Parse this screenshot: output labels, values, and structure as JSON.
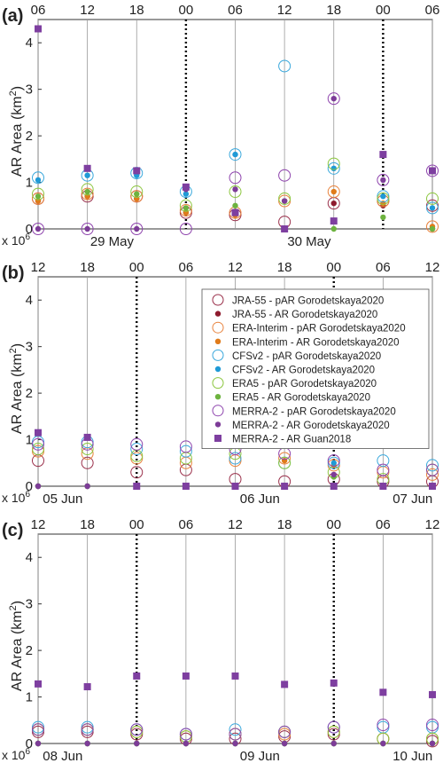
{
  "legend": [
    {
      "label": "JRA-55 - pAR Gorodetskaya2020",
      "marker": "open",
      "color": "#9a2f4a"
    },
    {
      "label": "JRA-55 - AR Gorodetskaya2020",
      "marker": "dot",
      "color": "#8e1b2e"
    },
    {
      "label": "ERA-Interim - pAR Gorodetskaya2020",
      "marker": "open",
      "color": "#e8823c"
    },
    {
      "label": "ERA-Interim - AR Gorodetskaya2020",
      "marker": "dot",
      "color": "#e07b1a"
    },
    {
      "label": "CFSv2 - pAR Gorodetskaya2020",
      "marker": "open",
      "color": "#3aa8dc"
    },
    {
      "label": "CFSv2 - AR Gorodetskaya2020",
      "marker": "dot",
      "color": "#1f9ad6"
    },
    {
      "label": "ERA5 - pAR Gorodetskaya2020",
      "marker": "open",
      "color": "#8cc63f"
    },
    {
      "label": "ERA5 - AR Gorodetskaya2020",
      "marker": "dot",
      "color": "#6db33f"
    },
    {
      "label": "MERRA-2 - pAR Gorodetskaya2020",
      "marker": "open",
      "color": "#8e44ad"
    },
    {
      "label": "MERRA-2 - AR Gorodetskaya2020",
      "marker": "dot",
      "color": "#7d3c98"
    },
    {
      "label": "MERRA-2 - AR Guan2018",
      "marker": "square",
      "color": "#7e3fa0"
    }
  ],
  "chart_data": [
    {
      "type": "scatter",
      "panel_label": "(a)",
      "ylabel": "AR Area (km",
      "ylabel_sup": "2",
      "ylabel_close": ")",
      "exponent_label": "x 10",
      "exponent_sup": "6",
      "ylim": [
        0,
        4.5
      ],
      "yticks": [
        0,
        1,
        2,
        3,
        4
      ],
      "x_hour_labels": [
        "06",
        "12",
        "18",
        "00",
        "06",
        "12",
        "18",
        "00",
        "06"
      ],
      "midnight_indices": [
        3,
        7
      ],
      "date_labels": [
        {
          "text": "29 May",
          "at": 1.5
        },
        {
          "text": "30 May",
          "at": 5.5
        }
      ],
      "series": [
        {
          "name": "JRA-55 - pAR Gorodetskaya2020",
          "values": [
            0.65,
            0.7,
            0.7,
            0.35,
            0.3,
            0.15,
            0.55,
            0.6,
            0.5
          ]
        },
        {
          "name": "JRA-55 - AR Gorodetskaya2020",
          "values": [
            0.6,
            0.7,
            0.65,
            0.35,
            0.3,
            0,
            0.55,
            0.5,
            0
          ]
        },
        {
          "name": "ERA-Interim - pAR Gorodetskaya2020",
          "values": [
            0.65,
            0.75,
            0.7,
            0.4,
            0.35,
            0.6,
            0.8,
            0.6,
            0.05
          ]
        },
        {
          "name": "ERA-Interim - AR Gorodetskaya2020",
          "values": [
            0.6,
            0.7,
            0.65,
            0.35,
            0.3,
            0.6,
            0.8,
            0.55,
            0.05
          ]
        },
        {
          "name": "CFSv2 - pAR Gorodetskaya2020",
          "values": [
            1.1,
            1.15,
            1.2,
            0.8,
            1.6,
            3.5,
            1.3,
            0.7,
            0.45
          ]
        },
        {
          "name": "CFSv2 - AR Gorodetskaya2020",
          "values": [
            1.05,
            1.15,
            1.15,
            0.75,
            1.6,
            0,
            1.3,
            0.7,
            0.45
          ]
        },
        {
          "name": "ERA5 - pAR Gorodetskaya2020",
          "values": [
            0.75,
            0.85,
            0.8,
            0.5,
            0.8,
            0.65,
            1.4,
            0.65,
            0.65
          ]
        },
        {
          "name": "ERA5 - AR Gorodetskaya2020",
          "values": [
            0.7,
            0.8,
            0.75,
            0.45,
            0.5,
            0.6,
            0,
            0.25,
            0
          ]
        },
        {
          "name": "MERRA-2 - pAR Gorodetskaya2020",
          "values": [
            0,
            0,
            0,
            0,
            1.1,
            1.15,
            2.8,
            1.05,
            1.25
          ]
        },
        {
          "name": "MERRA-2 - AR Gorodetskaya2020",
          "values": [
            0,
            0,
            0,
            0.85,
            0.85,
            0.6,
            2.8,
            1.05,
            1.25
          ]
        },
        {
          "name": "MERRA-2 - AR Guan2018",
          "values": [
            4.3,
            1.3,
            1.25,
            0.9,
            0.35,
            0,
            0.17,
            1.6,
            1.25
          ]
        }
      ]
    },
    {
      "type": "scatter",
      "panel_label": "(b)",
      "ylabel": "AR Area (km",
      "ylabel_sup": "2",
      "ylabel_close": ")",
      "exponent_label": "x 10",
      "exponent_sup": "6",
      "ylim": [
        0,
        4.5
      ],
      "yticks": [
        0,
        1,
        2,
        3,
        4
      ],
      "x_hour_labels": [
        "12",
        "18",
        "00",
        "06",
        "12",
        "18",
        "00",
        "06",
        "12"
      ],
      "midnight_indices": [
        2,
        6
      ],
      "date_labels": [
        {
          "text": "05 Jun",
          "at": 0.5
        },
        {
          "text": "06 Jun",
          "at": 4.5
        },
        {
          "text": "07 Jun",
          "at": 7.6
        }
      ],
      "series": [
        {
          "name": "JRA-55 - pAR Gorodetskaya2020",
          "values": [
            0.55,
            0.5,
            0.3,
            0.35,
            0.15,
            0.1,
            0.15,
            0.1,
            0.1
          ]
        },
        {
          "name": "JRA-55 - AR Gorodetskaya2020",
          "values": [
            0,
            0,
            0,
            0,
            0,
            0,
            0,
            0,
            0
          ]
        },
        {
          "name": "ERA-Interim - pAR Gorodetskaya2020",
          "values": [
            0.75,
            0.7,
            0.6,
            0.5,
            0.55,
            0.6,
            0.45,
            0.3,
            0.25
          ]
        },
        {
          "name": "ERA-Interim - AR Gorodetskaya2020",
          "values": [
            0,
            0,
            0,
            0,
            0,
            0.55,
            0.45,
            0,
            0
          ]
        },
        {
          "name": "CFSv2 - pAR Gorodetskaya2020",
          "values": [
            0.95,
            0.95,
            0.8,
            0.75,
            0.6,
            0.5,
            0.5,
            0.55,
            0.45
          ]
        },
        {
          "name": "CFSv2 - AR Gorodetskaya2020",
          "values": [
            0,
            0,
            0,
            0,
            0,
            0,
            0.5,
            0,
            0
          ]
        },
        {
          "name": "ERA5 - pAR Gorodetskaya2020",
          "values": [
            0.8,
            0.8,
            0.65,
            0.6,
            0.7,
            0.5,
            0.3,
            0.15,
            0.35
          ]
        },
        {
          "name": "ERA5 - AR Gorodetskaya2020",
          "values": [
            0,
            0,
            0,
            0,
            0,
            0,
            0.2,
            0,
            0
          ]
        },
        {
          "name": "MERRA-2 - pAR Gorodetskaya2020",
          "values": [
            0.9,
            0.9,
            0.9,
            0.85,
            0.8,
            0.7,
            0.55,
            0.35,
            0.35
          ]
        },
        {
          "name": "MERRA-2 - AR Gorodetskaya2020",
          "values": [
            0,
            0,
            0,
            0,
            0,
            0,
            0.25,
            0,
            0
          ]
        },
        {
          "name": "MERRA-2 - AR Guan2018",
          "values": [
            1.15,
            1.05,
            0,
            0,
            0,
            0,
            0,
            0,
            0
          ]
        }
      ]
    },
    {
      "type": "scatter",
      "panel_label": "(c)",
      "ylabel": "AR Area (km",
      "ylabel_sup": "2",
      "ylabel_close": ")",
      "exponent_label": "x 10",
      "exponent_sup": "6",
      "ylim": [
        0,
        4.5
      ],
      "yticks": [
        0,
        1,
        2,
        3,
        4
      ],
      "x_hour_labels": [
        "12",
        "18",
        "00",
        "06",
        "12",
        "18",
        "00",
        "06",
        "12"
      ],
      "midnight_indices": [
        2,
        6
      ],
      "date_labels": [
        {
          "text": "08 Jun",
          "at": 0.5
        },
        {
          "text": "09 Jun",
          "at": 4.5
        },
        {
          "text": "10 Jun",
          "at": 7.6
        }
      ],
      "series": [
        {
          "name": "JRA-55 - pAR Gorodetskaya2020",
          "values": [
            0.25,
            0.25,
            0.2,
            0.1,
            0.1,
            0.15,
            0.2,
            0.1,
            0.05
          ]
        },
        {
          "name": "JRA-55 - AR Gorodetskaya2020",
          "values": [
            0,
            0,
            0,
            0,
            0,
            0,
            0,
            0,
            0
          ]
        },
        {
          "name": "ERA-Interim - pAR Gorodetskaya2020",
          "values": [
            0.3,
            0.3,
            0.25,
            0.15,
            0.2,
            0.2,
            0.25,
            0.1,
            0.1
          ]
        },
        {
          "name": "ERA-Interim - AR Gorodetskaya2020",
          "values": [
            0,
            0,
            0,
            0,
            0,
            0,
            0,
            0,
            0
          ]
        },
        {
          "name": "CFSv2 - pAR Gorodetskaya2020",
          "values": [
            0.35,
            0.35,
            0.3,
            0.2,
            0.3,
            0.25,
            0.35,
            0.35,
            0.35
          ]
        },
        {
          "name": "CFSv2 - AR Gorodetskaya2020",
          "values": [
            0,
            0,
            0,
            0,
            0,
            0,
            0,
            0,
            0
          ]
        },
        {
          "name": "ERA5 - pAR Gorodetskaya2020",
          "values": [
            0.3,
            0.3,
            0.25,
            0.15,
            0.2,
            0.25,
            0.25,
            0.1,
            0.1
          ]
        },
        {
          "name": "ERA5 - AR Gorodetskaya2020",
          "values": [
            0,
            0,
            0,
            0,
            0,
            0,
            0,
            0,
            0
          ]
        },
        {
          "name": "MERRA-2 - pAR Gorodetskaya2020",
          "values": [
            0.3,
            0.3,
            0.3,
            0.2,
            0.2,
            0.25,
            0.35,
            0.4,
            0.4
          ]
        },
        {
          "name": "MERRA-2 - AR Gorodetskaya2020",
          "values": [
            0,
            0,
            0,
            0,
            0,
            0,
            0,
            0,
            0
          ]
        },
        {
          "name": "MERRA-2 - AR Guan2018",
          "values": [
            1.28,
            1.22,
            1.45,
            1.45,
            1.45,
            1.27,
            1.3,
            1.1,
            1.05
          ]
        }
      ]
    }
  ]
}
